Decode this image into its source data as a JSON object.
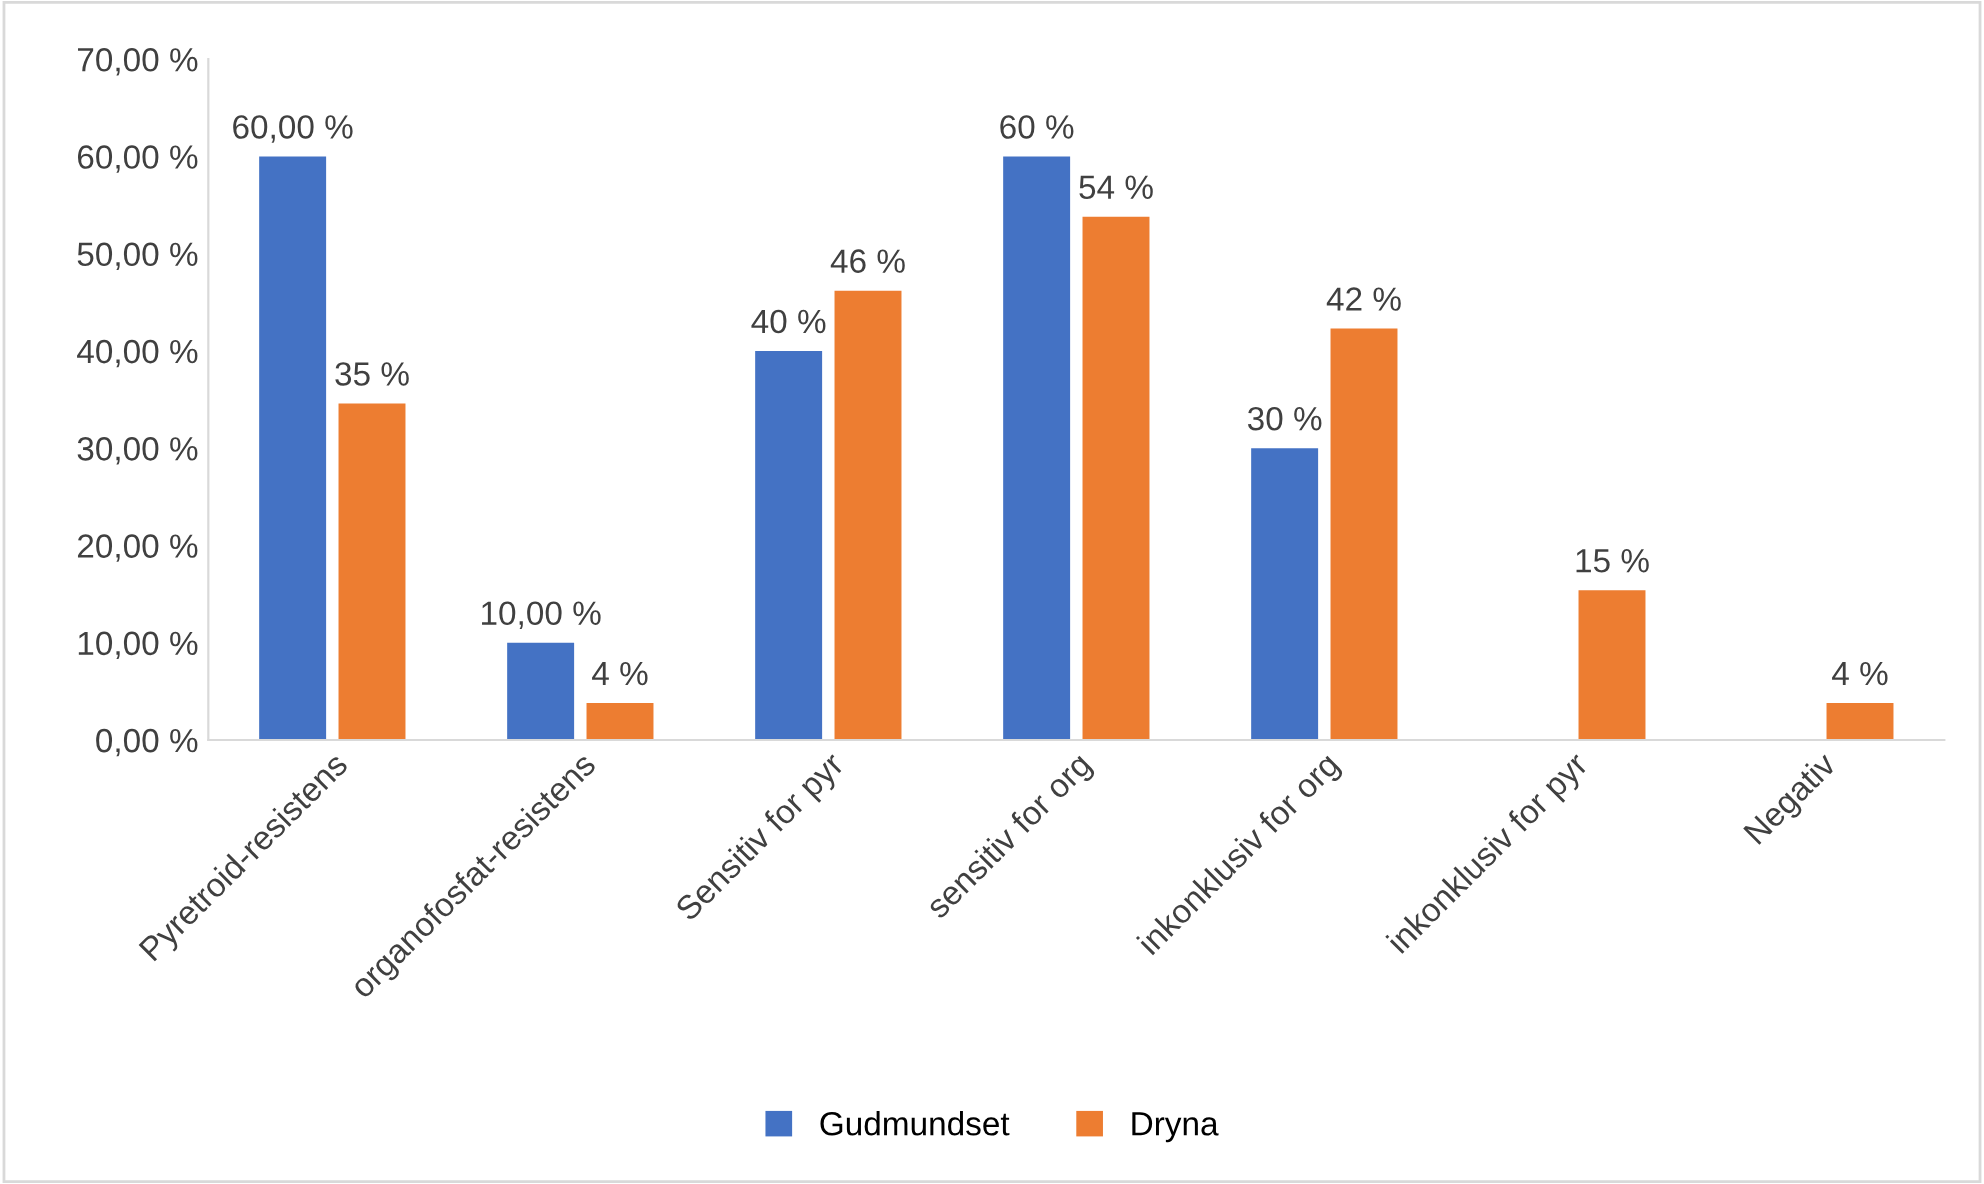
{
  "chart_data": {
    "type": "bar",
    "categories": [
      "Pyretroid-resistens",
      "organofosfat-resistens",
      "Sensitiv for pyr",
      "sensitiv for org",
      "inkonklusiv for org",
      "inkonklusiv for pyr",
      "Negativ"
    ],
    "series": [
      {
        "name": "Gudmundset",
        "color": "#4472c4",
        "values": [
          60,
          10,
          40,
          60,
          30,
          null,
          null
        ],
        "value_labels": [
          "60,00 %",
          "10,00 %",
          "40 %",
          "60 %",
          "30 %",
          null,
          null
        ]
      },
      {
        "name": "Dryna",
        "color": "#ed7d31",
        "values": [
          34.6,
          3.8,
          46.2,
          53.8,
          42.3,
          15.4,
          3.8
        ],
        "value_labels": [
          "35 %",
          "4 %",
          "46 %",
          "54 %",
          "42 %",
          "15 %",
          "4 %"
        ]
      }
    ],
    "ylim": [
      0,
      70
    ],
    "yticks": [
      {
        "value": 0,
        "label": "0,00 %"
      },
      {
        "value": 10,
        "label": "10,00 %"
      },
      {
        "value": 20,
        "label": "20,00 %"
      },
      {
        "value": 30,
        "label": "30,00 %"
      },
      {
        "value": 40,
        "label": "40,00 %"
      },
      {
        "value": 50,
        "label": "50,00 %"
      },
      {
        "value": 60,
        "label": "60,00 %"
      },
      {
        "value": 70,
        "label": "70,00 %"
      }
    ],
    "grid": false,
    "legend": "bottom"
  }
}
